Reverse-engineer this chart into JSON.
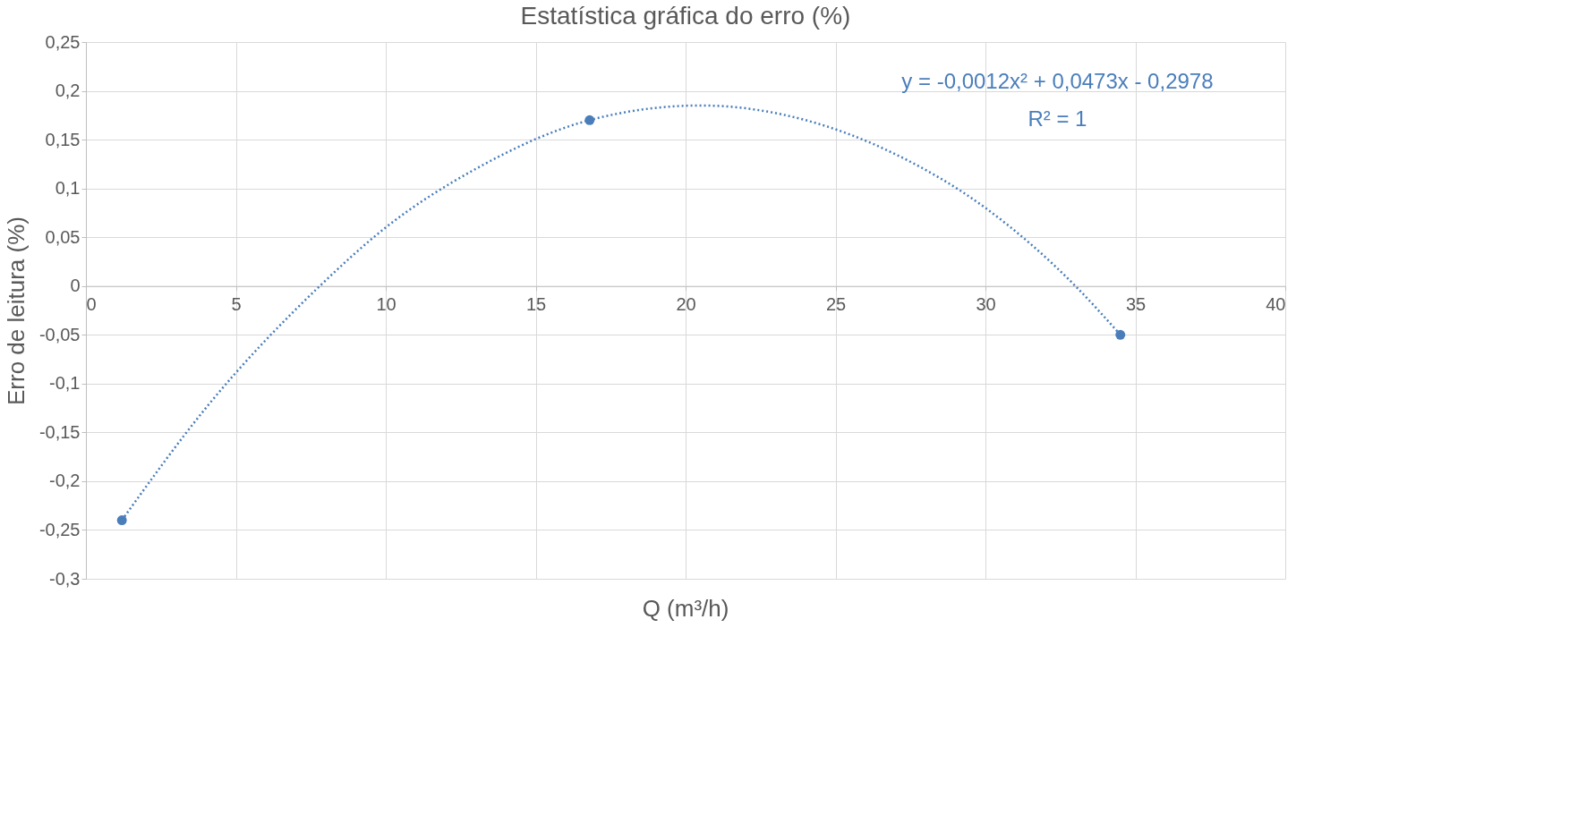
{
  "chart_data": {
    "type": "scatter",
    "title": "Estatística gráfica do erro (%)",
    "xlabel": "Q (m³/h)",
    "ylabel": "Erro de leitura (%)",
    "series": [
      {
        "color": "#4a7ebb",
        "x": [
          1.2,
          16.8,
          34.5
        ],
        "values": [
          -0.24,
          0.17,
          -0.05
        ],
        "marker": "circle"
      },
      {
        "type": "line",
        "color": "#4a7ebb",
        "line_style": "dotted",
        "marker": "none",
        "x": [
          1.2,
          4,
          7.8,
          10,
          13,
          16.8,
          20.5,
          24,
          27,
          30,
          33,
          34.5
        ],
        "values": [
          -0.24,
          -0.125,
          0,
          0.06,
          0.12,
          0.17,
          0.185,
          0.17,
          0.135,
          0.08,
          0,
          -0.05
        ]
      }
    ],
    "xlim": [
      0,
      40
    ],
    "xticks": [
      0,
      5,
      10,
      15,
      20,
      25,
      30,
      35,
      40
    ],
    "ylim": [
      -0.3,
      0.25
    ],
    "yticks": [
      {
        "value": -0.3,
        "label": "-0,3"
      },
      {
        "value": -0.25,
        "label": "-0,25"
      },
      {
        "value": -0.2,
        "label": "-0,2"
      },
      {
        "value": -0.15,
        "label": "-0,15"
      },
      {
        "value": -0.1,
        "label": "-0,1"
      },
      {
        "value": -0.05,
        "label": "-0,05"
      },
      {
        "value": 0,
        "label": "0"
      },
      {
        "value": 0.05,
        "label": "0,05"
      },
      {
        "value": 0.1,
        "label": "0,1"
      },
      {
        "value": 0.15,
        "label": "0,15"
      },
      {
        "value": 0.2,
        "label": "0,2"
      },
      {
        "value": 0.25,
        "label": "0,25"
      }
    ],
    "annotations": [
      "y = -0,0012x² + 0,0473x - 0,2978",
      "R² = 1"
    ],
    "grid": true
  }
}
